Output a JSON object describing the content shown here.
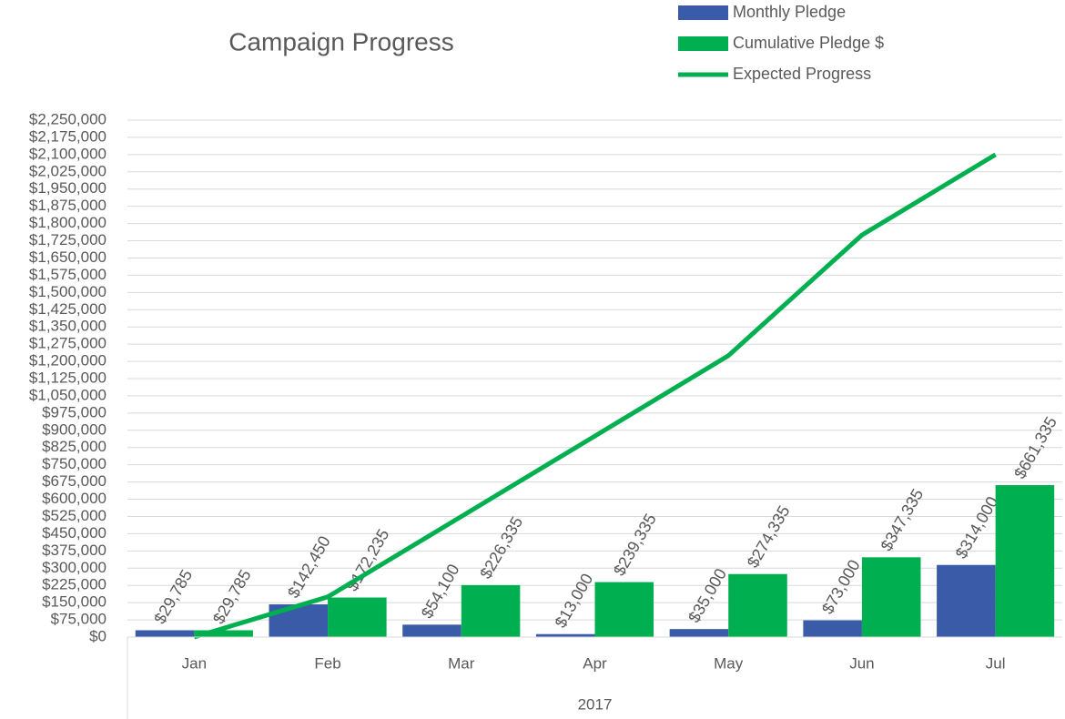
{
  "chart_data": {
    "type": "bar",
    "title": "Campaign Progress",
    "categories": [
      "Jan",
      "Feb",
      "Mar",
      "Apr",
      "May",
      "Jun",
      "Jul"
    ],
    "group_label": "2017",
    "series": [
      {
        "name": "Monthly Pledge",
        "type": "bar",
        "color": "#3a5ca8",
        "values": [
          29785,
          142450,
          54100,
          13000,
          35000,
          73000,
          314000
        ],
        "value_labels": [
          "$29,785",
          "$142,450",
          "$54,100",
          "$13,000",
          "$35,000",
          "$73,000",
          "$314,000"
        ]
      },
      {
        "name": "Cumulative Pledge $",
        "type": "bar",
        "color": "#00b050",
        "values": [
          29785,
          172235,
          226335,
          239335,
          274335,
          347335,
          661335
        ],
        "value_labels": [
          "$29,785",
          "$172,235",
          "$226,335",
          "$239,335",
          "$274,335",
          "$347,335",
          "$661,335"
        ]
      },
      {
        "name": "Expected Progress",
        "type": "line",
        "color": "#00b050",
        "values": [
          0,
          175000,
          525000,
          875000,
          1225000,
          1750000,
          2100000
        ]
      }
    ],
    "ylim": [
      0,
      2250000
    ],
    "yticks": [
      {
        "value": 0,
        "label": "$0"
      },
      {
        "value": 75000,
        "label": "$75,000"
      },
      {
        "value": 150000,
        "label": "$150,000"
      },
      {
        "value": 225000,
        "label": "$225,000"
      },
      {
        "value": 300000,
        "label": "$300,000"
      },
      {
        "value": 375000,
        "label": "$375,000"
      },
      {
        "value": 450000,
        "label": "$450,000"
      },
      {
        "value": 525000,
        "label": "$525,000"
      },
      {
        "value": 600000,
        "label": "$600,000"
      },
      {
        "value": 675000,
        "label": "$675,000"
      },
      {
        "value": 750000,
        "label": "$750,000"
      },
      {
        "value": 825000,
        "label": "$825,000"
      },
      {
        "value": 900000,
        "label": "$900,000"
      },
      {
        "value": 975000,
        "label": "$975,000"
      },
      {
        "value": 1050000,
        "label": "$1,050,000"
      },
      {
        "value": 1125000,
        "label": "$1,125,000"
      },
      {
        "value": 1200000,
        "label": "$1,200,000"
      },
      {
        "value": 1275000,
        "label": "$1,275,000"
      },
      {
        "value": 1350000,
        "label": "$1,350,000"
      },
      {
        "value": 1425000,
        "label": "$1,425,000"
      },
      {
        "value": 1500000,
        "label": "$1,500,000"
      },
      {
        "value": 1575000,
        "label": "$1,575,000"
      },
      {
        "value": 1650000,
        "label": "$1,650,000"
      },
      {
        "value": 1725000,
        "label": "$1,725,000"
      },
      {
        "value": 1800000,
        "label": "$1,800,000"
      },
      {
        "value": 1875000,
        "label": "$1,875,000"
      },
      {
        "value": 1950000,
        "label": "$1,950,000"
      },
      {
        "value": 2025000,
        "label": "$2,025,000"
      },
      {
        "value": 2100000,
        "label": "$2,100,000"
      },
      {
        "value": 2175000,
        "label": "$2,175,000"
      },
      {
        "value": 2250000,
        "label": "$2,250,000"
      }
    ],
    "grid": true
  }
}
